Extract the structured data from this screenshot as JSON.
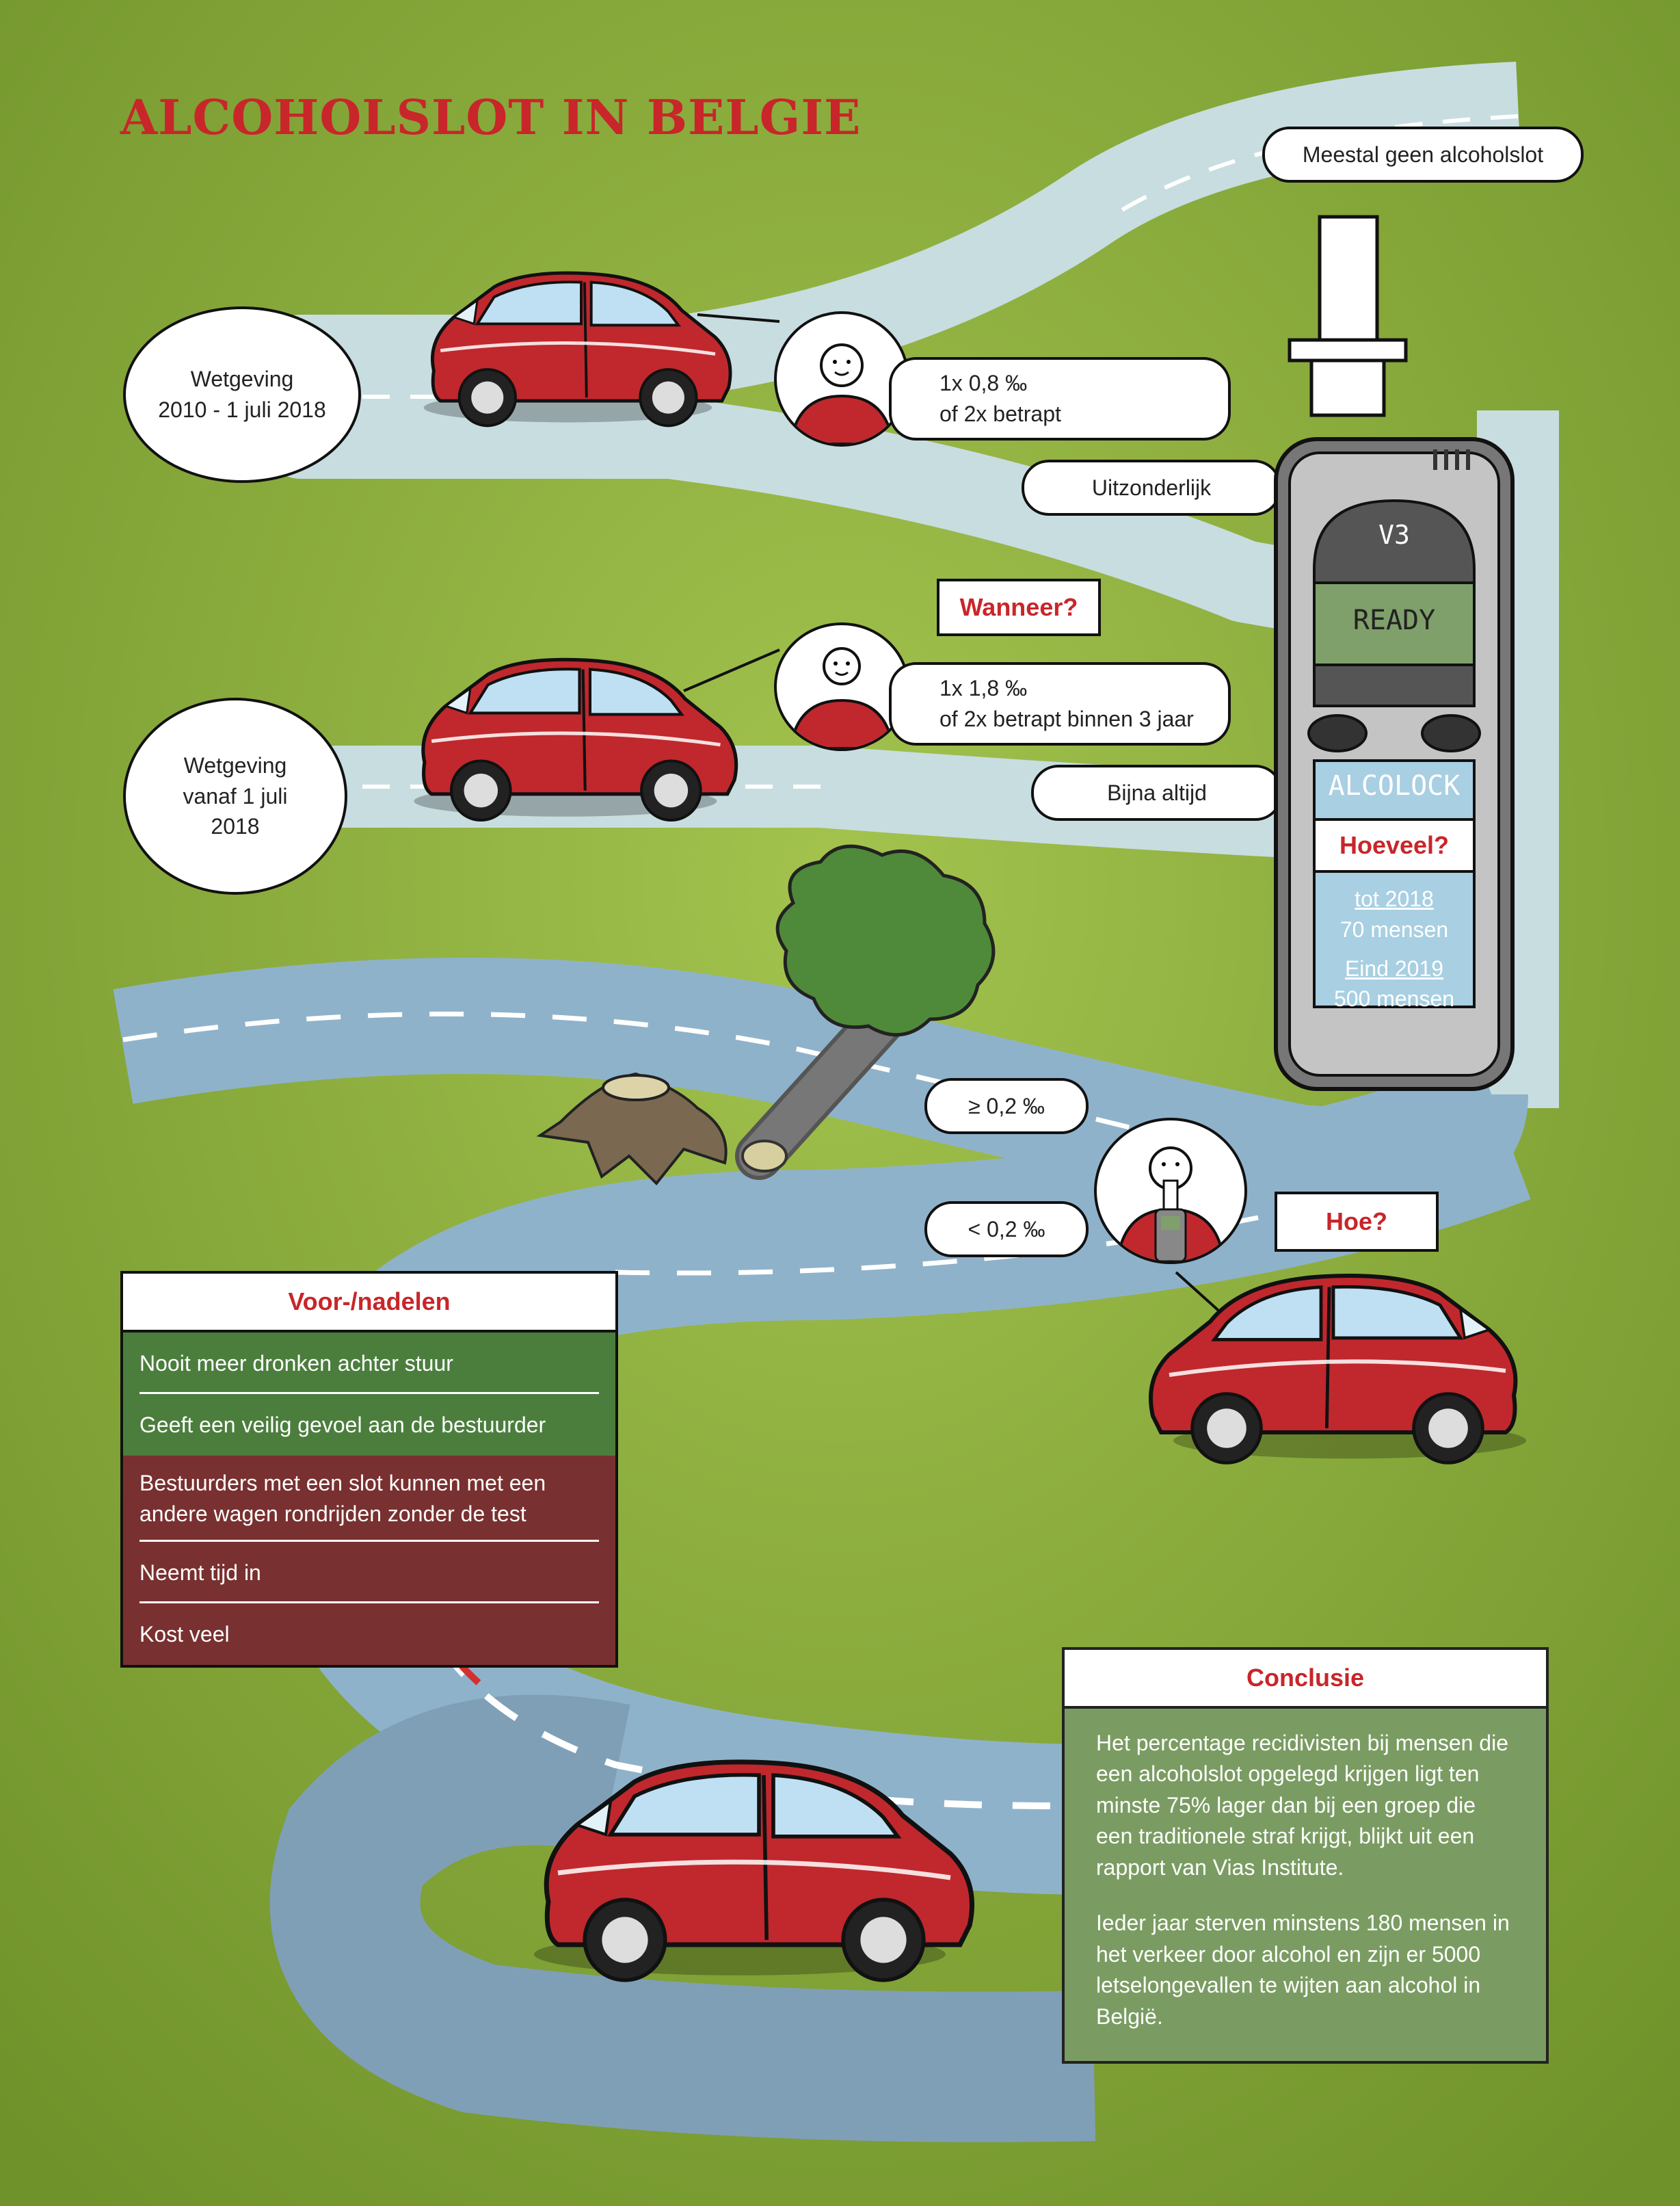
{
  "title": "ALCOHOLSLOT IN BELGIE",
  "colors": {
    "grass": "#88ab3a",
    "road_light": "#c8dde0",
    "road_blue": "#8fb2cb",
    "accent_red": "#c8262a",
    "pro_green": "#3c732d",
    "con_red": "#6e1e1e",
    "conclusion_green": "#7a9c62"
  },
  "top_label": "Meestal geen alcoholslot",
  "law_old": {
    "label": "Wetgeving\n2010 - 1 juli 2018",
    "condition": "1x 0,8 ‰\nof 2x betrapt",
    "outcome": "Uitzonderlijk"
  },
  "law_new": {
    "label": "Wetgeving\nvanaf 1 juli\n2018",
    "condition": "1x 1,8 ‰\nof 2x betrapt binnen 3 jaar",
    "outcome": "Bijna altijd"
  },
  "when_label": "Wanneer?",
  "device": {
    "model": "V3",
    "screen": "READY",
    "brand": "ALCOLOCK",
    "how_many_label": "Hoeveel?",
    "stats": [
      {
        "period": "tot 2018",
        "value": "70 mensen"
      },
      {
        "period": "Eind 2019",
        "value": "500 mensen"
      }
    ]
  },
  "threshold_high": "≥ 0,2 ‰",
  "threshold_low": "< 0,2 ‰",
  "how_label": "Hoe?",
  "pros_cons": {
    "header": "Voor-/nadelen",
    "pros": [
      "Nooit meer dronken achter stuur",
      "Geeft een veilig gevoel aan de bestuurder"
    ],
    "cons": [
      "Bestuurders met een slot kunnen met een\nandere wagen rondrijden zonder de test",
      "Neemt tijd in",
      "Kost veel"
    ]
  },
  "conclusion": {
    "header": "Conclusie",
    "p1": "Het percentage recidivisten bij mensen die een alcoholslot opgelegd krijgen ligt ten minste 75% lager dan bij een groep die een traditionele straf krijgt, blijkt uit een rapport van Vias Institute.",
    "p2": "Ieder jaar sterven minstens 180 mensen in het verkeer door alcohol en zijn er 5000 letselongevallen te wijten aan alcohol in België."
  }
}
